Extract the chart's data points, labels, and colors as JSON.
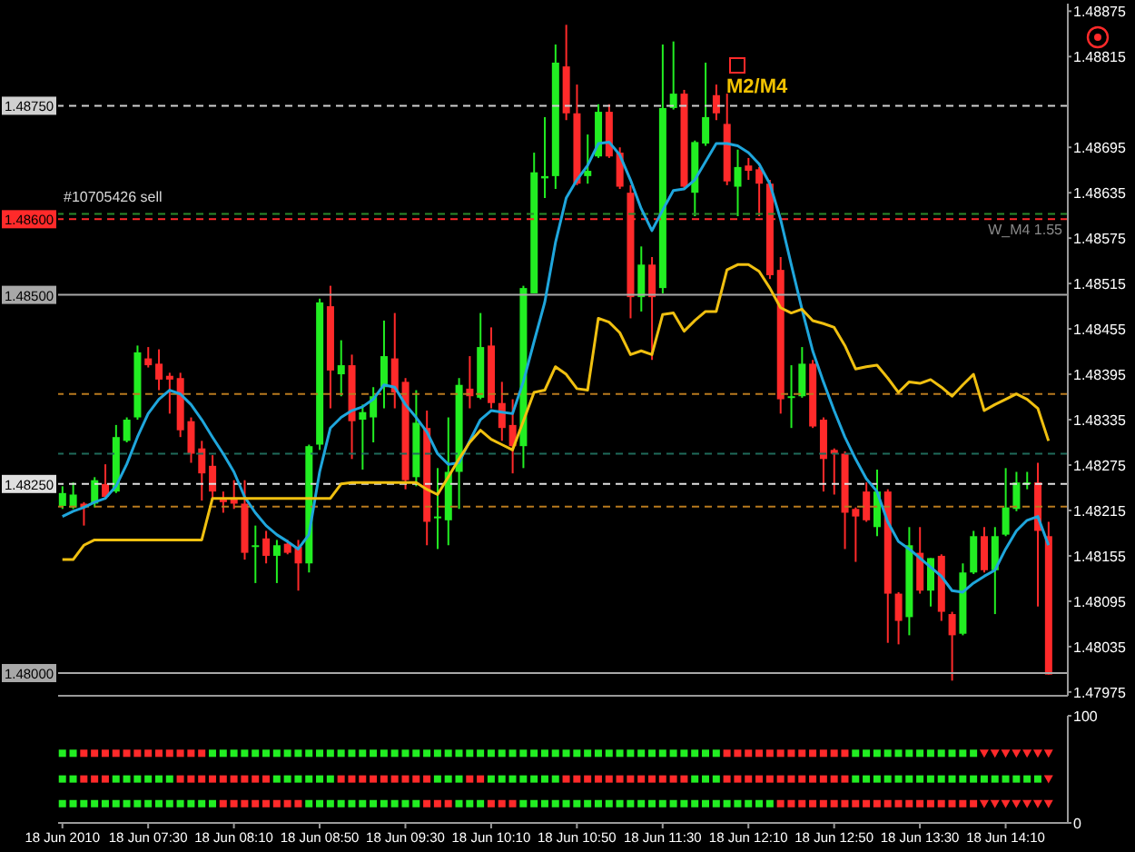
{
  "chart_data": [
    {
      "type": "candlestick",
      "x": [
        "2010-06-18T06:50",
        "2010-06-18T06:55",
        "2010-06-18T07:00",
        "2010-06-18T07:05",
        "2010-06-18T07:10",
        "2010-06-18T07:15",
        "2010-06-18T07:20",
        "2010-06-18T07:25",
        "2010-06-18T07:30",
        "2010-06-18T07:35",
        "2010-06-18T07:40",
        "2010-06-18T07:45",
        "2010-06-18T07:50",
        "2010-06-18T07:55",
        "2010-06-18T08:00",
        "2010-06-18T08:05",
        "2010-06-18T08:10",
        "2010-06-18T08:15",
        "2010-06-18T08:20",
        "2010-06-18T08:25",
        "2010-06-18T08:30",
        "2010-06-18T08:35",
        "2010-06-18T08:40",
        "2010-06-18T08:45",
        "2010-06-18T08:50",
        "2010-06-18T08:55",
        "2010-06-18T09:00",
        "2010-06-18T09:05",
        "2010-06-18T09:10",
        "2010-06-18T09:15",
        "2010-06-18T09:20",
        "2010-06-18T09:25",
        "2010-06-18T09:30",
        "2010-06-18T09:35",
        "2010-06-18T09:40",
        "2010-06-18T09:45",
        "2010-06-18T09:50",
        "2010-06-18T09:55",
        "2010-06-18T10:00",
        "2010-06-18T10:05",
        "2010-06-18T10:10",
        "2010-06-18T10:15",
        "2010-06-18T10:20",
        "2010-06-18T10:25",
        "2010-06-18T10:30",
        "2010-06-18T10:35",
        "2010-06-18T10:40",
        "2010-06-18T10:45",
        "2010-06-18T10:50",
        "2010-06-18T10:55",
        "2010-06-18T11:00",
        "2010-06-18T11:05",
        "2010-06-18T11:10",
        "2010-06-18T11:15",
        "2010-06-18T11:20",
        "2010-06-18T11:25",
        "2010-06-18T11:30",
        "2010-06-18T11:35",
        "2010-06-18T11:40",
        "2010-06-18T11:45",
        "2010-06-18T11:50",
        "2010-06-18T11:55",
        "2010-06-18T12:00",
        "2010-06-18T12:05",
        "2010-06-18T12:10",
        "2010-06-18T12:15",
        "2010-06-18T12:20",
        "2010-06-18T12:25",
        "2010-06-18T12:30",
        "2010-06-18T12:35",
        "2010-06-18T12:40",
        "2010-06-18T12:45",
        "2010-06-18T12:50",
        "2010-06-18T12:55",
        "2010-06-18T13:00",
        "2010-06-18T13:05",
        "2010-06-18T13:10",
        "2010-06-18T13:15",
        "2010-06-18T13:20",
        "2010-06-18T13:25",
        "2010-06-18T13:30",
        "2010-06-18T13:35",
        "2010-06-18T13:40",
        "2010-06-18T13:45",
        "2010-06-18T13:50",
        "2010-06-18T13:55",
        "2010-06-18T14:00",
        "2010-06-18T14:05",
        "2010-06-18T14:10",
        "2010-06-18T14:15",
        "2010-06-18T14:20",
        "2010-06-18T14:25",
        "2010-06-18T14:30"
      ],
      "ohlc": [
        [
          1.48221,
          1.48247,
          1.48217,
          1.48238
        ],
        [
          1.48219,
          1.48252,
          1.48217,
          1.48236
        ],
        [
          1.48224,
          1.48226,
          1.48195,
          1.48219
        ],
        [
          1.48224,
          1.48259,
          1.48219,
          1.48255
        ],
        [
          1.4825,
          1.48276,
          1.48231,
          1.48233
        ],
        [
          1.4824,
          1.48328,
          1.48238,
          1.48312
        ],
        [
          1.48307,
          1.48338,
          1.48305,
          1.48335
        ],
        [
          1.48338,
          1.48433,
          1.48335,
          1.48424
        ],
        [
          1.48416,
          1.48431,
          1.48404,
          1.48407
        ],
        [
          1.48409,
          1.48428,
          1.48374,
          1.48388
        ],
        [
          1.48393,
          1.48397,
          1.48343,
          1.48388
        ],
        [
          1.4839,
          1.48397,
          1.48312,
          1.48321
        ],
        [
          1.48333,
          1.48338,
          1.48278,
          1.4829
        ],
        [
          1.48297,
          1.48307,
          1.48228,
          1.48264
        ],
        [
          1.48274,
          1.48288,
          1.48228,
          1.4824
        ],
        [
          1.48231,
          1.4824,
          1.48212,
          1.48226
        ],
        [
          1.48231,
          1.48255,
          1.48217,
          1.48224
        ],
        [
          1.48224,
          1.48255,
          1.4815,
          1.48159
        ],
        [
          1.48167,
          1.48195,
          1.48119,
          1.48169
        ],
        [
          1.48178,
          1.48188,
          1.48145,
          1.48155
        ],
        [
          1.48155,
          1.48176,
          1.48119,
          1.48169
        ],
        [
          1.48171,
          1.48176,
          1.48157,
          1.48159
        ],
        [
          1.48167,
          1.48176,
          1.48109,
          1.48145
        ],
        [
          1.48145,
          1.48302,
          1.48133,
          1.483
        ],
        [
          1.48302,
          1.48495,
          1.48295,
          1.4849
        ],
        [
          1.48485,
          1.48512,
          1.4835,
          1.484
        ],
        [
          1.48395,
          1.4844,
          1.48366,
          1.48407
        ],
        [
          1.48407,
          1.48421,
          1.48283,
          1.48333
        ],
        [
          1.48335,
          1.48355,
          1.48269,
          1.48345
        ],
        [
          1.48338,
          1.48378,
          1.48305,
          1.48366
        ],
        [
          1.48378,
          1.48466,
          1.4835,
          1.48419
        ],
        [
          1.48416,
          1.48476,
          1.4835,
          1.48371
        ],
        [
          1.48385,
          1.4839,
          1.48243,
          1.48255
        ],
        [
          1.48259,
          1.48374,
          1.48247,
          1.48331
        ],
        [
          1.48324,
          1.48347,
          1.48169,
          1.482
        ],
        [
          1.48205,
          1.48271,
          1.48164,
          1.48207
        ],
        [
          1.48202,
          1.48338,
          1.48169,
          1.48266
        ],
        [
          1.48266,
          1.4839,
          1.48217,
          1.48381
        ],
        [
          1.48376,
          1.48419,
          1.4835,
          1.48366
        ],
        [
          1.48364,
          1.48476,
          1.48362,
          1.48431
        ],
        [
          1.48433,
          1.48457,
          1.4835,
          1.48357
        ],
        [
          1.48357,
          1.48385,
          1.48307,
          1.48324
        ],
        [
          1.48328,
          1.48362,
          1.48264,
          1.483
        ],
        [
          1.483,
          1.48512,
          1.48271,
          1.48509
        ],
        [
          1.48502,
          1.48688,
          1.48502,
          1.48662
        ],
        [
          1.48654,
          1.48735,
          1.48628,
          1.48657
        ],
        [
          1.48657,
          1.48831,
          1.4864,
          1.48807
        ],
        [
          1.48802,
          1.48857,
          1.48731,
          1.4874
        ],
        [
          1.4874,
          1.48778,
          1.48645,
          1.48647
        ],
        [
          1.48657,
          1.48712,
          1.48647,
          1.48664
        ],
        [
          1.48683,
          1.48752,
          1.48681,
          1.48742
        ],
        [
          1.48742,
          1.48752,
          1.48681,
          1.48683
        ],
        [
          1.48688,
          1.48695,
          1.4864,
          1.48643
        ],
        [
          1.48635,
          1.48645,
          1.48469,
          1.48497
        ],
        [
          1.48497,
          1.48564,
          1.48478,
          1.4854
        ],
        [
          1.4854,
          1.4855,
          1.48414,
          1.48497
        ],
        [
          1.48509,
          1.48831,
          1.48502,
          1.48747
        ],
        [
          1.48747,
          1.48835,
          1.48745,
          1.48766
        ],
        [
          1.48766,
          1.48771,
          1.4864,
          1.48643
        ],
        [
          1.48635,
          1.48704,
          1.48604,
          1.48702
        ],
        [
          1.487,
          1.48807,
          1.48697,
          1.48735
        ],
        [
          1.48764,
          1.48778,
          1.48731,
          1.4874
        ],
        [
          1.48726,
          1.48766,
          1.48645,
          1.4865
        ],
        [
          1.48643,
          1.48692,
          1.48604,
          1.48669
        ],
        [
          1.48671,
          1.48681,
          1.48652,
          1.48664
        ],
        [
          1.48666,
          1.48669,
          1.48604,
          1.48647
        ],
        [
          1.48647,
          1.48652,
          1.48521,
          1.48526
        ],
        [
          1.48533,
          1.4855,
          1.48343,
          1.48362
        ],
        [
          1.48364,
          1.48407,
          1.48324,
          1.48366
        ],
        [
          1.48366,
          1.48431,
          1.48364,
          1.48409
        ],
        [
          1.48409,
          1.48414,
          1.48324,
          1.48326
        ],
        [
          1.48335,
          1.48338,
          1.4824,
          1.48283
        ],
        [
          1.48295,
          1.48297,
          1.48236,
          1.4829
        ],
        [
          1.4829,
          1.48293,
          1.48164,
          1.48212
        ],
        [
          1.48217,
          1.48219,
          1.48147,
          1.48207
        ],
        [
          1.4824,
          1.48252,
          1.482,
          1.48202
        ],
        [
          1.48193,
          1.48269,
          1.48181,
          1.4824
        ],
        [
          1.4824,
          1.48243,
          1.4804,
          1.48105
        ],
        [
          1.48105,
          1.48107,
          1.48038,
          1.48069
        ],
        [
          1.48074,
          1.48193,
          1.4805,
          1.48169
        ],
        [
          1.48159,
          1.48193,
          1.48105,
          1.48109
        ],
        [
          1.48109,
          1.48152,
          1.48088,
          1.48152
        ],
        [
          1.48155,
          1.48157,
          1.48069,
          1.48081
        ],
        [
          1.48078,
          1.48081,
          1.4799,
          1.4805
        ],
        [
          1.48052,
          1.48145,
          1.4805,
          1.48133
        ],
        [
          1.48133,
          1.48188,
          1.48131,
          1.48181
        ],
        [
          1.48181,
          1.48193,
          1.48133,
          1.48136
        ],
        [
          1.48136,
          1.48193,
          1.48078,
          1.48181
        ],
        [
          1.48183,
          1.48271,
          1.48181,
          1.48219
        ],
        [
          1.48217,
          1.48266,
          1.48214,
          1.48252
        ],
        [
          1.4825,
          1.48266,
          1.48243,
          1.48252
        ],
        [
          1.48252,
          1.48278,
          1.48088,
          1.48188
        ],
        [
          1.48181,
          1.482,
          1.47998,
          1.47998
        ]
      ],
      "colors": [
        "#22ee22",
        "#22ee22",
        "#ff2a2a",
        "#22ee22",
        "#ff2a2a",
        "#22ee22",
        "#22ee22",
        "#22ee22",
        "#ff2a2a",
        "#ff2a2a",
        "#ff2a2a",
        "#ff2a2a",
        "#ff2a2a",
        "#ff2a2a",
        "#ff2a2a",
        "#ff2a2a",
        "#ff2a2a",
        "#ff2a2a",
        "#22ee22",
        "#ff2a2a",
        "#22ee22",
        "#ff2a2a",
        "#ff2a2a",
        "#22ee22",
        "#22ee22",
        "#ff2a2a",
        "#22ee22",
        "#ff2a2a",
        "#22ee22",
        "#22ee22",
        "#22ee22",
        "#ff2a2a",
        "#ff2a2a",
        "#22ee22",
        "#ff2a2a",
        "#22ee22",
        "#22ee22",
        "#22ee22",
        "#ff2a2a",
        "#22ee22",
        "#ff2a2a",
        "#ff2a2a",
        "#ff2a2a",
        "#22ee22",
        "#22ee22",
        "#22ee22",
        "#22ee22",
        "#ff2a2a",
        "#ff2a2a",
        "#22ee22",
        "#22ee22",
        "#ff2a2a",
        "#ff2a2a",
        "#ff2a2a",
        "#22ee22",
        "#ff2a2a",
        "#22ee22",
        "#22ee22",
        "#ff2a2a",
        "#22ee22",
        "#22ee22",
        "#ff2a2a",
        "#ff2a2a",
        "#22ee22",
        "#ff2a2a",
        "#ff2a2a",
        "#ff2a2a",
        "#ff2a2a",
        "#22ee22",
        "#22ee22",
        "#ff2a2a",
        "#ff2a2a",
        "#ff2a2a",
        "#ff2a2a",
        "#ff2a2a",
        "#ff2a2a",
        "#22ee22",
        "#ff2a2a",
        "#ff2a2a",
        "#22ee22",
        "#ff2a2a",
        "#22ee22",
        "#ff2a2a",
        "#ff2a2a",
        "#22ee22",
        "#22ee22",
        "#ff2a2a",
        "#22ee22",
        "#22ee22",
        "#22ee22",
        "#22ee22",
        "#ff2a2a",
        "#ff2a2a"
      ],
      "series": [
        {
          "type": "line",
          "color": "#1fa6dc",
          "values": [
            1.48207,
            1.48214,
            1.48219,
            1.48226,
            1.48231,
            1.48247,
            1.48276,
            1.48312,
            1.48343,
            1.48362,
            1.48374,
            1.48369,
            1.48355,
            1.48335,
            1.48312,
            1.4829,
            1.48266,
            1.48233,
            1.48212,
            1.48195,
            1.48183,
            1.48174,
            1.48164,
            1.48183,
            1.48266,
            1.48324,
            1.48338,
            1.48347,
            1.48352,
            1.48362,
            1.48381,
            1.48378,
            1.48355,
            1.48338,
            1.48319,
            1.4829,
            1.48276,
            1.48278,
            1.48307,
            1.48335,
            1.48347,
            1.48345,
            1.48343,
            1.48385,
            1.48438,
            1.4849,
            1.48569,
            1.48628,
            1.48652,
            1.48671,
            1.487,
            1.48702,
            1.48685,
            1.48652,
            1.48614,
            1.48585,
            1.48612,
            1.48638,
            1.4864,
            1.48652,
            1.48676,
            1.487,
            1.487,
            1.48697,
            1.48688,
            1.48673,
            1.48647,
            1.486,
            1.4854,
            1.48481,
            1.48426,
            1.48385,
            1.48347,
            1.48312,
            1.48283,
            1.48257,
            1.4824,
            1.482,
            1.48174,
            1.48164,
            1.48152,
            1.4814,
            1.48128,
            1.48109,
            1.48107,
            1.48119,
            1.48128,
            1.48136,
            1.48164,
            1.48188,
            1.48202,
            1.48207,
            1.48169
          ]
        },
        {
          "type": "line",
          "color": "#f0c010",
          "values": [
            1.4815,
            1.4815,
            1.48169,
            1.48176,
            1.48176,
            1.48176,
            1.48176,
            1.48176,
            1.48176,
            1.48176,
            1.48176,
            1.48176,
            1.48176,
            1.48176,
            1.48231,
            1.48231,
            1.48231,
            1.48231,
            1.48231,
            1.48231,
            1.48231,
            1.48231,
            1.48231,
            1.48231,
            1.48231,
            1.48231,
            1.4825,
            1.48252,
            1.48252,
            1.48252,
            1.48252,
            1.48252,
            1.48252,
            1.48252,
            1.48243,
            1.48236,
            1.48259,
            1.48283,
            1.48305,
            1.48321,
            1.48309,
            1.48302,
            1.48295,
            1.48333,
            1.48371,
            1.48374,
            1.48405,
            1.48395,
            1.48376,
            1.48374,
            1.48469,
            1.48464,
            1.4845,
            1.48421,
            1.48426,
            1.48421,
            1.48474,
            1.48476,
            1.48452,
            1.48466,
            1.48478,
            1.48478,
            1.48533,
            1.4854,
            1.4854,
            1.48531,
            1.48509,
            1.48483,
            1.48476,
            1.48481,
            1.48466,
            1.48462,
            1.48457,
            1.48433,
            1.48402,
            1.48405,
            1.48407,
            1.4839,
            1.48371,
            1.48385,
            1.48383,
            1.48388,
            1.48378,
            1.48366,
            1.48381,
            1.48395,
            1.48347,
            1.48355,
            1.48362,
            1.48369,
            1.48362,
            1.4835,
            1.48307
          ]
        }
      ],
      "xlim": [
        "2010-06-18T06:48",
        "2010-06-18T14:39"
      ],
      "ylim": [
        1.4797,
        1.48885
      ],
      "yticks": [
        1.47975,
        1.48035,
        1.48095,
        1.48155,
        1.48215,
        1.48275,
        1.48335,
        1.48395,
        1.48455,
        1.48515,
        1.48575,
        1.48635,
        1.48695,
        1.48815,
        1.48875
      ],
      "ref_lines": [
        {
          "axis": "y",
          "value": 1.4875,
          "label": "1.48750",
          "color": "#d0d0d0",
          "line_style": "dashed"
        },
        {
          "axis": "y",
          "value": 1.48607,
          "color": "#2a8a2a",
          "line_style": "dashed"
        },
        {
          "axis": "y",
          "value": 1.486,
          "label": "1.48600",
          "color": "#ff2a2a",
          "line_style": "dashed"
        },
        {
          "axis": "y",
          "value": 1.485,
          "label": "1.48500",
          "color": "#a8a8a8"
        },
        {
          "axis": "y",
          "value": 1.48369,
          "color": "#b87a1e",
          "line_style": "dashed"
        },
        {
          "axis": "y",
          "value": 1.4829,
          "color": "#1f6a5a",
          "line_style": "dashed"
        },
        {
          "axis": "y",
          "value": 1.4825,
          "label": "1.48250",
          "color": "#e0e0e0",
          "line_style": "dashed"
        },
        {
          "axis": "y",
          "value": 1.4822,
          "color": "#b87a1e",
          "line_style": "dashed"
        },
        {
          "axis": "y",
          "value": 1.48,
          "label": "1.48000",
          "color": "#a8a8a8"
        }
      ],
      "annotations": [
        "#10705426 sell",
        "W_M4 1.55",
        "M2/M4"
      ],
      "tick_labels": "y"
    },
    {
      "type": "scatter",
      "x": [
        "2010-06-18T06:50",
        "2010-06-18T06:55",
        "2010-06-18T07:00",
        "2010-06-18T07:05",
        "2010-06-18T07:10",
        "2010-06-18T07:15",
        "2010-06-18T07:20",
        "2010-06-18T07:25",
        "2010-06-18T07:30",
        "2010-06-18T07:35",
        "2010-06-18T07:40",
        "2010-06-18T07:45",
        "2010-06-18T07:50",
        "2010-06-18T07:55",
        "2010-06-18T08:00",
        "2010-06-18T08:05",
        "2010-06-18T08:10",
        "2010-06-18T08:15",
        "2010-06-18T08:20",
        "2010-06-18T08:25",
        "2010-06-18T08:30",
        "2010-06-18T08:35",
        "2010-06-18T08:40",
        "2010-06-18T08:45",
        "2010-06-18T08:50",
        "2010-06-18T08:55",
        "2010-06-18T09:00",
        "2010-06-18T09:05",
        "2010-06-18T09:10",
        "2010-06-18T09:15",
        "2010-06-18T09:20",
        "2010-06-18T09:25",
        "2010-06-18T09:30",
        "2010-06-18T09:35",
        "2010-06-18T09:40",
        "2010-06-18T09:45",
        "2010-06-18T09:50",
        "2010-06-18T09:55",
        "2010-06-18T10:00",
        "2010-06-18T10:05",
        "2010-06-18T10:10",
        "2010-06-18T10:15",
        "2010-06-18T10:20",
        "2010-06-18T10:25",
        "2010-06-18T10:30",
        "2010-06-18T10:35",
        "2010-06-18T10:40",
        "2010-06-18T10:45",
        "2010-06-18T10:50",
        "2010-06-18T10:55",
        "2010-06-18T11:00",
        "2010-06-18T11:05",
        "2010-06-18T11:10",
        "2010-06-18T11:15",
        "2010-06-18T11:20",
        "2010-06-18T11:25",
        "2010-06-18T11:30",
        "2010-06-18T11:35",
        "2010-06-18T11:40",
        "2010-06-18T11:45",
        "2010-06-18T11:50",
        "2010-06-18T11:55",
        "2010-06-18T12:00",
        "2010-06-18T12:05",
        "2010-06-18T12:10",
        "2010-06-18T12:15",
        "2010-06-18T12:20",
        "2010-06-18T12:25",
        "2010-06-18T12:30",
        "2010-06-18T12:35",
        "2010-06-18T12:40",
        "2010-06-18T12:45",
        "2010-06-18T12:50",
        "2010-06-18T12:55",
        "2010-06-18T13:00",
        "2010-06-18T13:05",
        "2010-06-18T13:10",
        "2010-06-18T13:15",
        "2010-06-18T13:20",
        "2010-06-18T13:25",
        "2010-06-18T13:30",
        "2010-06-18T13:35",
        "2010-06-18T13:40",
        "2010-06-18T13:45",
        "2010-06-18T13:50",
        "2010-06-18T13:55",
        "2010-06-18T14:00",
        "2010-06-18T14:05",
        "2010-06-18T14:10",
        "2010-06-18T14:15",
        "2010-06-18T14:20",
        "2010-06-18T14:25",
        "2010-06-18T14:30"
      ],
      "series": [
        {
          "marker": "square",
          "values": [
            65,
            65,
            65,
            65,
            65,
            65,
            65,
            65,
            65,
            65,
            65,
            65,
            65,
            65,
            65,
            65,
            65,
            65,
            65,
            65,
            65,
            65,
            65,
            65,
            65,
            65,
            65,
            65,
            65,
            65,
            65,
            65,
            65,
            65,
            65,
            65,
            65,
            65,
            65,
            65,
            65,
            65,
            65,
            65,
            65,
            65,
            65,
            65,
            65,
            65,
            65,
            65,
            65,
            65,
            65,
            65,
            65,
            65,
            65,
            65,
            65,
            65,
            65,
            65,
            65,
            65,
            65,
            65,
            65,
            65,
            65,
            65,
            65,
            65,
            65,
            65,
            65,
            65,
            65,
            65,
            65,
            65,
            65,
            65,
            65,
            65,
            null,
            null,
            null,
            null,
            null,
            null,
            null
          ],
          "colors": [
            "#22ee22",
            "#22ee22",
            "#ff2a2a",
            "#ff2a2a",
            "#ff2a2a",
            "#ff2a2a",
            "#ff2a2a",
            "#ff2a2a",
            "#ff2a2a",
            "#ff2a2a",
            "#ff2a2a",
            "#ff2a2a",
            "#ff2a2a",
            "#ff2a2a",
            "#22ee22",
            "#22ee22",
            "#22ee22",
            "#22ee22",
            "#22ee22",
            "#22ee22",
            "#22ee22",
            "#22ee22",
            "#22ee22",
            "#22ee22",
            "#22ee22",
            "#22ee22",
            "#22ee22",
            "#22ee22",
            "#22ee22",
            "#22ee22",
            "#22ee22",
            "#22ee22",
            "#22ee22",
            "#22ee22",
            "#22ee22",
            "#22ee22",
            "#22ee22",
            "#22ee22",
            "#22ee22",
            "#22ee22",
            "#22ee22",
            "#22ee22",
            "#22ee22",
            "#22ee22",
            "#22ee22",
            "#22ee22",
            "#22ee22",
            "#22ee22",
            "#22ee22",
            "#22ee22",
            "#22ee22",
            "#22ee22",
            "#22ee22",
            "#22ee22",
            "#22ee22",
            "#22ee22",
            "#22ee22",
            "#22ee22",
            "#22ee22",
            "#22ee22",
            "#22ee22",
            "#22ee22",
            "#ff2a2a",
            "#ff2a2a",
            "#ff2a2a",
            "#ff2a2a",
            "#ff2a2a",
            "#ff2a2a",
            "#ff2a2a",
            "#ff2a2a",
            "#ff2a2a",
            "#ff2a2a",
            "#ff2a2a",
            "#ff2a2a",
            "#22ee22",
            "#22ee22",
            "#22ee22",
            "#22ee22",
            "#22ee22",
            "#22ee22",
            "#22ee22",
            "#22ee22",
            "#22ee22",
            "#22ee22",
            "#22ee22",
            "#22ee22",
            null,
            null,
            null,
            null,
            null,
            null,
            null
          ]
        },
        {
          "marker": "triangle",
          "color": "#ff2a2a",
          "values": [
            null,
            null,
            null,
            null,
            null,
            null,
            null,
            null,
            null,
            null,
            null,
            null,
            null,
            null,
            null,
            null,
            null,
            null,
            null,
            null,
            null,
            null,
            null,
            null,
            null,
            null,
            null,
            null,
            null,
            null,
            null,
            null,
            null,
            null,
            null,
            null,
            null,
            null,
            null,
            null,
            null,
            null,
            null,
            null,
            null,
            null,
            null,
            null,
            null,
            null,
            null,
            null,
            null,
            null,
            null,
            null,
            null,
            null,
            null,
            null,
            null,
            null,
            null,
            null,
            null,
            null,
            null,
            null,
            null,
            null,
            null,
            null,
            null,
            null,
            null,
            null,
            null,
            null,
            null,
            null,
            null,
            null,
            null,
            null,
            null,
            null,
            65,
            65,
            65,
            65,
            65,
            65,
            65
          ]
        },
        {
          "marker": "square",
          "values": [
            41,
            41,
            41,
            41,
            41,
            41,
            41,
            41,
            41,
            41,
            41,
            41,
            41,
            41,
            41,
            41,
            41,
            41,
            41,
            41,
            41,
            41,
            41,
            41,
            41,
            41,
            41,
            41,
            41,
            41,
            41,
            41,
            41,
            41,
            41,
            41,
            41,
            41,
            41,
            41,
            41,
            41,
            41,
            41,
            41,
            41,
            41,
            41,
            41,
            41,
            41,
            41,
            41,
            41,
            41,
            41,
            41,
            41,
            41,
            41,
            41,
            41,
            41,
            41,
            41,
            41,
            41,
            41,
            41,
            41,
            41,
            41,
            41,
            41,
            41,
            41,
            41,
            41,
            41,
            41,
            41,
            41,
            41,
            41,
            41,
            41,
            41,
            41,
            41,
            41,
            41,
            41,
            null
          ],
          "colors": [
            "#22ee22",
            "#22ee22",
            "#ff2a2a",
            "#ff2a2a",
            "#ff2a2a",
            "#22ee22",
            "#22ee22",
            "#22ee22",
            "#22ee22",
            "#22ee22",
            "#22ee22",
            "#ff2a2a",
            "#ff2a2a",
            "#ff2a2a",
            "#ff2a2a",
            "#ff2a2a",
            "#ff2a2a",
            "#ff2a2a",
            "#ff2a2a",
            "#ff2a2a",
            "#22ee22",
            "#22ee22",
            "#22ee22",
            "#22ee22",
            "#22ee22",
            "#22ee22",
            "#ff2a2a",
            "#ff2a2a",
            "#ff2a2a",
            "#ff2a2a",
            "#ff2a2a",
            "#ff2a2a",
            "#ff2a2a",
            "#ff2a2a",
            "#ff2a2a",
            "#22ee22",
            "#22ee22",
            "#22ee22",
            "#ff2a2a",
            "#ff2a2a",
            "#22ee22",
            "#22ee22",
            "#22ee22",
            "#22ee22",
            "#22ee22",
            "#22ee22",
            "#22ee22",
            "#ff2a2a",
            "#ff2a2a",
            "#ff2a2a",
            "#ff2a2a",
            "#ff2a2a",
            "#ff2a2a",
            "#ff2a2a",
            "#ff2a2a",
            "#ff2a2a",
            "#ff2a2a",
            "#ff2a2a",
            "#ff2a2a",
            "#22ee22",
            "#22ee22",
            "#22ee22",
            "#ff2a2a",
            "#ff2a2a",
            "#ff2a2a",
            "#ff2a2a",
            "#ff2a2a",
            "#ff2a2a",
            "#ff2a2a",
            "#ff2a2a",
            "#ff2a2a",
            "#ff2a2a",
            "#ff2a2a",
            "#ff2a2a",
            "#22ee22",
            "#22ee22",
            "#22ee22",
            "#22ee22",
            "#22ee22",
            "#22ee22",
            "#22ee22",
            "#22ee22",
            "#22ee22",
            "#22ee22",
            "#22ee22",
            "#22ee22",
            "#22ee22",
            "#22ee22",
            "#22ee22",
            "#22ee22",
            "#22ee22",
            "#22ee22",
            null
          ]
        },
        {
          "marker": "triangle",
          "color": "#ff2a2a",
          "values": [
            null,
            null,
            null,
            null,
            null,
            null,
            null,
            null,
            null,
            null,
            null,
            null,
            null,
            null,
            null,
            null,
            null,
            null,
            null,
            null,
            null,
            null,
            null,
            null,
            null,
            null,
            null,
            null,
            null,
            null,
            null,
            null,
            null,
            null,
            null,
            null,
            null,
            null,
            null,
            null,
            null,
            null,
            null,
            null,
            null,
            null,
            null,
            null,
            null,
            null,
            null,
            null,
            null,
            null,
            null,
            null,
            null,
            null,
            null,
            null,
            null,
            null,
            null,
            null,
            null,
            null,
            null,
            null,
            null,
            null,
            null,
            null,
            null,
            null,
            null,
            null,
            null,
            null,
            null,
            null,
            null,
            null,
            null,
            null,
            null,
            null,
            null,
            null,
            null,
            null,
            null,
            null,
            41
          ]
        },
        {
          "marker": "square",
          "values": [
            18,
            18,
            18,
            18,
            18,
            18,
            18,
            18,
            18,
            18,
            18,
            18,
            18,
            18,
            18,
            18,
            18,
            18,
            18,
            18,
            18,
            18,
            18,
            18,
            18,
            18,
            18,
            18,
            18,
            18,
            18,
            18,
            18,
            18,
            18,
            18,
            18,
            18,
            18,
            18,
            18,
            18,
            18,
            18,
            18,
            18,
            18,
            18,
            18,
            18,
            18,
            18,
            18,
            18,
            18,
            18,
            18,
            18,
            18,
            18,
            18,
            18,
            18,
            18,
            18,
            18,
            18,
            18,
            18,
            18,
            18,
            18,
            18,
            18,
            18,
            18,
            18,
            18,
            18,
            18,
            18,
            18,
            18,
            18,
            18,
            18,
            null,
            null,
            null,
            null,
            null,
            null,
            null
          ],
          "colors": [
            "#22ee22",
            "#22ee22",
            "#22ee22",
            "#22ee22",
            "#22ee22",
            "#22ee22",
            "#22ee22",
            "#22ee22",
            "#22ee22",
            "#22ee22",
            "#22ee22",
            "#22ee22",
            "#22ee22",
            "#22ee22",
            "#22ee22",
            "#ff2a2a",
            "#ff2a2a",
            "#ff2a2a",
            "#ff2a2a",
            "#ff2a2a",
            "#ff2a2a",
            "#ff2a2a",
            "#ff2a2a",
            "#22ee22",
            "#22ee22",
            "#22ee22",
            "#22ee22",
            "#22ee22",
            "#22ee22",
            "#22ee22",
            "#22ee22",
            "#22ee22",
            "#22ee22",
            "#22ee22",
            "#ff2a2a",
            "#ff2a2a",
            "#ff2a2a",
            "#22ee22",
            "#22ee22",
            "#22ee22",
            "#ff2a2a",
            "#ff2a2a",
            "#ff2a2a",
            "#22ee22",
            "#22ee22",
            "#22ee22",
            "#22ee22",
            "#22ee22",
            "#22ee22",
            "#22ee22",
            "#22ee22",
            "#22ee22",
            "#22ee22",
            "#22ee22",
            "#22ee22",
            "#22ee22",
            "#22ee22",
            "#22ee22",
            "#22ee22",
            "#22ee22",
            "#22ee22",
            "#22ee22",
            "#22ee22",
            "#22ee22",
            "#22ee22",
            "#22ee22",
            "#22ee22",
            "#ff2a2a",
            "#ff2a2a",
            "#ff2a2a",
            "#ff2a2a",
            "#ff2a2a",
            "#ff2a2a",
            "#ff2a2a",
            "#ff2a2a",
            "#ff2a2a",
            "#ff2a2a",
            "#ff2a2a",
            "#ff2a2a",
            "#ff2a2a",
            "#ff2a2a",
            "#ff2a2a",
            "#ff2a2a",
            "#ff2a2a",
            "#ff2a2a",
            "#ff2a2a",
            null,
            null,
            null,
            null,
            null,
            null,
            null
          ]
        },
        {
          "marker": "triangle",
          "color": "#ff2a2a",
          "values": [
            null,
            null,
            null,
            null,
            null,
            null,
            null,
            null,
            null,
            null,
            null,
            null,
            null,
            null,
            null,
            null,
            null,
            null,
            null,
            null,
            null,
            null,
            null,
            null,
            null,
            null,
            null,
            null,
            null,
            null,
            null,
            null,
            null,
            null,
            null,
            null,
            null,
            null,
            null,
            null,
            null,
            null,
            null,
            null,
            null,
            null,
            null,
            null,
            null,
            null,
            null,
            null,
            null,
            null,
            null,
            null,
            null,
            null,
            null,
            null,
            null,
            null,
            null,
            null,
            null,
            null,
            null,
            null,
            null,
            null,
            null,
            null,
            null,
            null,
            null,
            null,
            null,
            null,
            null,
            null,
            null,
            null,
            null,
            null,
            null,
            null,
            18,
            18,
            18,
            18,
            18,
            18,
            18
          ]
        }
      ],
      "xlim": [
        "2010-06-18T06:48",
        "2010-06-18T14:39"
      ],
      "xticks": [
        {
          "value": "2010-06-18T06:50",
          "label": "18 Jun 2010"
        },
        {
          "value": "2010-06-18T07:30",
          "label": "18 Jun 07:30"
        },
        {
          "value": "2010-06-18T08:10",
          "label": "18 Jun 08:10"
        },
        {
          "value": "2010-06-18T08:50",
          "label": "18 Jun 08:50"
        },
        {
          "value": "2010-06-18T09:30",
          "label": "18 Jun 09:30"
        },
        {
          "value": "2010-06-18T10:10",
          "label": "18 Jun 10:10"
        },
        {
          "value": "2010-06-18T10:50",
          "label": "18 Jun 10:50"
        },
        {
          "value": "2010-06-18T11:30",
          "label": "18 Jun 11:30"
        },
        {
          "value": "2010-06-18T12:10",
          "label": "18 Jun 12:10"
        },
        {
          "value": "2010-06-18T12:50",
          "label": "18 Jun 12:50"
        },
        {
          "value": "2010-06-18T13:30",
          "label": "18 Jun 13:30"
        },
        {
          "value": "2010-06-18T14:10",
          "label": "18 Jun 14:10"
        }
      ],
      "ylim": [
        0,
        100
      ],
      "yticks": [
        0,
        100
      ]
    }
  ]
}
